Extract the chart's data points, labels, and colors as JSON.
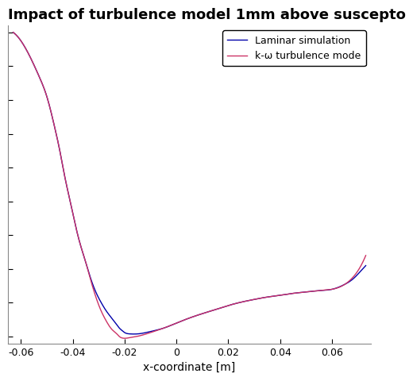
{
  "title": "Impact of turbulence model 1mm above suscepto",
  "xlabel": "x-coordinate [m]",
  "ylabel": "",
  "xlim": [
    -0.065,
    0.075
  ],
  "xticks": [
    -0.06,
    -0.04,
    -0.02,
    0,
    0.02,
    0.04,
    0.06
  ],
  "xtick_labels": [
    "-0.06",
    "-0.04",
    "-0.02",
    "0",
    "0.02",
    "0.04",
    "0.06"
  ],
  "legend": [
    "Laminar simulation",
    "k-ω turbulence mode"
  ],
  "line_laminar_color": "#0000aa",
  "line_komega_color": "#cc3366",
  "line_width": 1.0,
  "background": "#ffffff",
  "title_fontsize": 13,
  "label_fontsize": 10,
  "tick_fontsize": 9,
  "legend_fontsize": 9,
  "laminar_x": [
    -0.063,
    -0.058,
    -0.053,
    -0.05,
    -0.047,
    -0.045,
    -0.043,
    -0.041,
    -0.039,
    -0.037,
    -0.035,
    -0.033,
    -0.031,
    -0.029,
    -0.027,
    -0.025,
    -0.023,
    -0.022,
    -0.021,
    -0.02,
    -0.018,
    -0.015,
    -0.01,
    -0.005,
    0.0,
    0.005,
    0.01,
    0.015,
    0.02,
    0.025,
    0.03,
    0.035,
    0.04,
    0.045,
    0.05,
    0.055,
    0.06,
    0.065,
    0.068,
    0.07,
    0.073
  ],
  "laminar_y": [
    1.0,
    0.95,
    0.87,
    0.81,
    0.72,
    0.65,
    0.57,
    0.5,
    0.43,
    0.37,
    0.32,
    0.27,
    0.23,
    0.2,
    0.175,
    0.155,
    0.135,
    0.125,
    0.118,
    0.112,
    0.108,
    0.108,
    0.115,
    0.125,
    0.14,
    0.155,
    0.168,
    0.18,
    0.192,
    0.202,
    0.21,
    0.217,
    0.222,
    0.228,
    0.232,
    0.236,
    0.24,
    0.255,
    0.27,
    0.285,
    0.31
  ],
  "komega_x": [
    -0.063,
    -0.058,
    -0.053,
    -0.05,
    -0.047,
    -0.045,
    -0.043,
    -0.041,
    -0.039,
    -0.037,
    -0.035,
    -0.033,
    -0.031,
    -0.029,
    -0.027,
    -0.025,
    -0.023,
    -0.022,
    -0.021,
    -0.02,
    -0.018,
    -0.015,
    -0.01,
    -0.005,
    0.0,
    0.005,
    0.01,
    0.015,
    0.02,
    0.025,
    0.03,
    0.035,
    0.04,
    0.045,
    0.05,
    0.055,
    0.06,
    0.065,
    0.068,
    0.07,
    0.073
  ],
  "komega_y": [
    1.0,
    0.95,
    0.87,
    0.81,
    0.72,
    0.65,
    0.57,
    0.5,
    0.43,
    0.37,
    0.32,
    0.265,
    0.215,
    0.175,
    0.145,
    0.122,
    0.108,
    0.1,
    0.096,
    0.095,
    0.097,
    0.101,
    0.112,
    0.125,
    0.14,
    0.155,
    0.168,
    0.18,
    0.192,
    0.202,
    0.21,
    0.217,
    0.222,
    0.228,
    0.232,
    0.236,
    0.24,
    0.255,
    0.275,
    0.295,
    0.34
  ],
  "ylim": [
    0.08,
    1.02
  ]
}
